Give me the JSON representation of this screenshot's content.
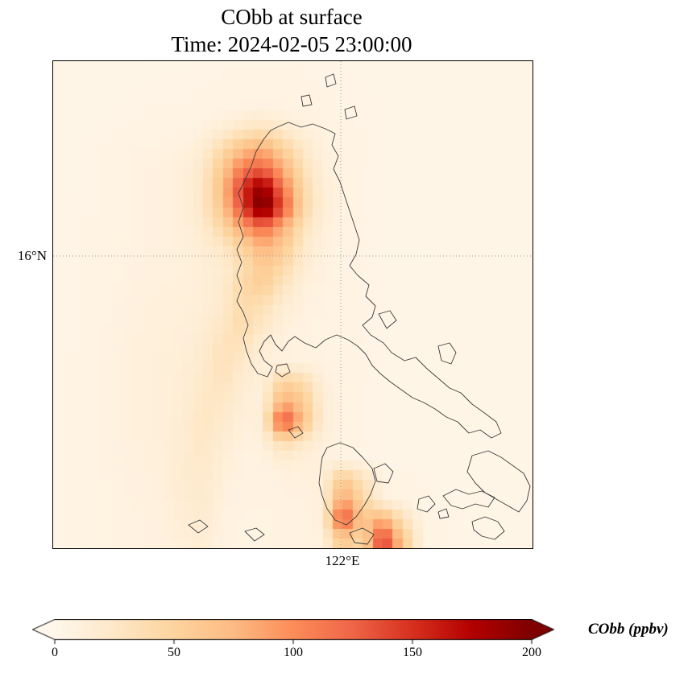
{
  "chart_data": {
    "type": "heatmap",
    "title": "CObb at surface",
    "subtitle": "Time: 2024-02-05 23:00:00",
    "variable": "CObb",
    "units": "ppbv",
    "lon_range": [
      117.8,
      124.8
    ],
    "lat_range": [
      11.5,
      19.0
    ],
    "grid_on": true,
    "gridlines": {
      "lat_value": 16,
      "lat_label": "16°N",
      "lon_value": 122,
      "lon_label": "122°E"
    },
    "colorbar": {
      "label": "CObb (ppbv)",
      "orientation": "horizontal",
      "ticks": [
        0,
        50,
        100,
        150,
        200
      ],
      "vmin": 0,
      "vmax": 200,
      "extend": "both",
      "colormap": "OrRd",
      "colors": [
        "#fff7ec",
        "#fee8c8",
        "#fdd49e",
        "#fdbb84",
        "#fc8d59",
        "#ef6548",
        "#d7301f",
        "#b30000",
        "#7f0000"
      ]
    },
    "grid_shape": [
      25,
      24
    ],
    "values": [
      [
        4,
        4,
        4,
        4,
        4,
        4,
        4,
        5,
        5,
        5,
        5,
        5,
        5,
        5,
        4,
        4,
        4,
        4,
        4,
        4,
        4,
        4,
        4,
        4
      ],
      [
        4,
        4,
        4,
        4,
        4,
        5,
        5,
        5,
        6,
        6,
        7,
        6,
        6,
        5,
        5,
        4,
        4,
        4,
        4,
        4,
        4,
        4,
        4,
        4
      ],
      [
        4,
        4,
        4,
        4,
        5,
        5,
        5,
        6,
        7,
        8,
        9,
        8,
        7,
        6,
        5,
        5,
        4,
        4,
        4,
        4,
        4,
        4,
        4,
        4
      ],
      [
        4,
        4,
        4,
        5,
        6,
        6,
        7,
        9,
        16,
        26,
        32,
        22,
        12,
        8,
        6,
        5,
        4,
        4,
        4,
        4,
        4,
        4,
        4,
        4
      ],
      [
        4,
        4,
        5,
        6,
        8,
        8,
        10,
        16,
        42,
        72,
        85,
        52,
        24,
        10,
        7,
        5,
        4,
        4,
        4,
        4,
        4,
        4,
        4,
        4
      ],
      [
        4,
        4,
        5,
        6,
        9,
        10,
        12,
        22,
        62,
        112,
        125,
        82,
        34,
        12,
        7,
        5,
        4,
        4,
        4,
        4,
        4,
        4,
        4,
        4
      ],
      [
        4,
        4,
        5,
        6,
        9,
        10,
        12,
        26,
        72,
        152,
        195,
        112,
        44,
        14,
        8,
        5,
        4,
        4,
        4,
        4,
        4,
        4,
        4,
        4
      ],
      [
        4,
        5,
        5,
        6,
        9,
        10,
        12,
        26,
        66,
        142,
        215,
        132,
        50,
        15,
        8,
        5,
        4,
        4,
        4,
        4,
        4,
        4,
        4,
        4
      ],
      [
        4,
        5,
        6,
        7,
        9,
        10,
        12,
        20,
        46,
        92,
        122,
        82,
        34,
        12,
        7,
        5,
        4,
        4,
        4,
        4,
        4,
        4,
        4,
        4
      ],
      [
        4,
        5,
        6,
        7,
        9,
        10,
        12,
        16,
        26,
        52,
        82,
        62,
        24,
        10,
        7,
        5,
        4,
        4,
        4,
        4,
        4,
        4,
        4,
        4
      ],
      [
        4,
        5,
        6,
        8,
        10,
        10,
        11,
        14,
        18,
        36,
        62,
        46,
        18,
        9,
        6,
        5,
        4,
        4,
        4,
        4,
        4,
        4,
        4,
        4
      ],
      [
        4,
        5,
        6,
        8,
        10,
        11,
        11,
        13,
        20,
        46,
        56,
        30,
        12,
        8,
        6,
        5,
        4,
        4,
        4,
        4,
        4,
        4,
        4,
        4
      ],
      [
        4,
        5,
        7,
        9,
        11,
        11,
        12,
        14,
        22,
        42,
        36,
        18,
        10,
        7,
        6,
        5,
        4,
        4,
        4,
        4,
        4,
        4,
        4,
        4
      ],
      [
        4,
        5,
        7,
        9,
        11,
        12,
        13,
        16,
        26,
        42,
        26,
        12,
        8,
        7,
        6,
        5,
        4,
        4,
        4,
        4,
        4,
        4,
        4,
        4
      ],
      [
        4,
        5,
        7,
        10,
        12,
        12,
        13,
        19,
        32,
        32,
        16,
        10,
        8,
        7,
        6,
        5,
        4,
        4,
        4,
        4,
        4,
        4,
        4,
        4
      ],
      [
        4,
        6,
        8,
        10,
        12,
        13,
        14,
        21,
        34,
        23,
        12,
        10,
        9,
        8,
        6,
        5,
        4,
        4,
        4,
        4,
        4,
        4,
        4,
        4
      ],
      [
        4,
        6,
        8,
        10,
        12,
        13,
        15,
        23,
        31,
        17,
        12,
        52,
        42,
        12,
        7,
        5,
        4,
        4,
        4,
        4,
        4,
        4,
        4,
        4
      ],
      [
        4,
        6,
        8,
        10,
        12,
        13,
        16,
        26,
        26,
        14,
        12,
        84,
        62,
        15,
        8,
        5,
        4,
        4,
        4,
        4,
        4,
        4,
        4,
        4
      ],
      [
        4,
        6,
        8,
        10,
        12,
        13,
        17,
        29,
        21,
        12,
        14,
        145,
        72,
        15,
        8,
        5,
        4,
        4,
        4,
        4,
        4,
        4,
        4,
        4
      ],
      [
        4,
        6,
        8,
        10,
        11,
        13,
        17,
        27,
        17,
        10,
        10,
        42,
        26,
        12,
        8,
        5,
        4,
        4,
        4,
        4,
        4,
        4,
        4,
        4
      ],
      [
        4,
        6,
        8,
        9,
        11,
        12,
        19,
        25,
        14,
        9,
        8,
        16,
        12,
        10,
        8,
        5,
        4,
        4,
        4,
        4,
        4,
        4,
        4,
        4
      ],
      [
        4,
        6,
        7,
        9,
        10,
        12,
        19,
        23,
        12,
        8,
        8,
        10,
        10,
        13,
        62,
        32,
        8,
        6,
        4,
        4,
        4,
        4,
        4,
        4
      ],
      [
        4,
        6,
        7,
        9,
        10,
        11,
        17,
        21,
        10,
        8,
        8,
        9,
        9,
        13,
        92,
        46,
        10,
        7,
        5,
        4,
        4,
        4,
        4,
        4
      ],
      [
        4,
        6,
        7,
        8,
        9,
        10,
        15,
        19,
        9,
        7,
        7,
        8,
        8,
        13,
        142,
        62,
        82,
        32,
        7,
        5,
        4,
        4,
        4,
        4
      ],
      [
        4,
        6,
        7,
        8,
        9,
        10,
        13,
        16,
        8,
        7,
        7,
        8,
        8,
        11,
        62,
        42,
        152,
        62,
        8,
        5,
        4,
        4,
        4,
        4
      ]
    ],
    "coastlines": [
      "M 278,82 L 292,76 L 308,82 L 322,78 L 338,84 L 350,90 L 346,104 L 354,118 L 348,134 L 356,150 L 362,168 L 368,186 L 374,204 L 380,222 L 376,240 L 368,254 L 378,266 L 392,278 L 388,292 L 400,304 L 396,318 L 384,328 L 394,340 L 410,350 L 420,362 L 436,372 L 450,368 L 464,382 L 478,394 L 492,406 L 506,412 L 520,426 L 534,436 L 550,448 L 556,462 L 544,468 L 530,458 L 516,462 L 502,448 L 488,442 L 474,432 L 460,424 L 446,418 L 432,408 L 418,398 L 406,388 L 396,378 L 388,364 L 378,354 L 366,346 L 352,340 L 338,346 L 326,356 L 312,350 L 300,342 L 292,348 L 284,360 L 276,352 L 270,340 L 262,348 L 256,360 L 262,372 L 272,380 L 266,392 L 254,388 L 246,376 L 240,360 L 236,344 L 242,328 L 236,312 L 228,298 L 234,282 L 228,266 L 234,250 L 228,234 L 236,218 L 230,200 L 236,182 L 230,164 L 238,148 L 246,130 L 252,112 L 262,96 L 270,86 Z",
      "M 340,480 L 356,474 L 372,480 L 384,492 L 396,506 L 400,522 L 394,538 L 386,552 L 376,566 L 364,576 L 350,570 L 340,556 L 334,540 L 330,524 L 332,506 L 334,492 Z",
      "M 292,458 L 304,454 L 310,462 L 300,468 Z",
      "M 478,354 L 492,350 L 500,362 L 494,376 L 482,372 Z",
      "M 404,314 L 418,310 L 426,322 L 414,332 Z",
      "M 308,44 L 318,42 L 321,54 L 310,56 Z",
      "M 338,20 L 348,16 L 351,28 L 340,32 Z",
      "M 362,60 L 374,56 L 377,68 L 364,72 Z",
      "M 398,506 L 412,500 L 422,510 L 416,524 L 402,522 Z",
      "M 454,544 L 466,540 L 474,550 L 464,560 L 452,556 Z",
      "M 478,560 L 488,556 L 491,566 L 480,568 Z",
      "M 484,540 L 500,532 L 516,538 L 532,534 L 548,542 L 540,554 L 524,550 L 508,556 L 494,552 Z",
      "M 520,490 L 540,484 L 556,492 L 570,502 L 584,512 L 592,528 L 588,546 L 578,560 L 564,552 L 550,544 L 536,536 L 524,524 L 514,510 Z",
      "M 520,572 L 536,566 L 552,572 L 560,584 L 548,594 L 532,590 L 522,582 Z",
      "M 168,576 L 182,570 L 192,578 L 180,586 Z",
      "M 238,584 L 252,580 L 262,588 L 250,596 Z",
      "M 368,586 L 384,580 L 398,588 L 390,600 L 374,598 Z",
      "M 278,378 L 290,376 L 294,386 L 284,392 L 276,386 Z"
    ]
  }
}
